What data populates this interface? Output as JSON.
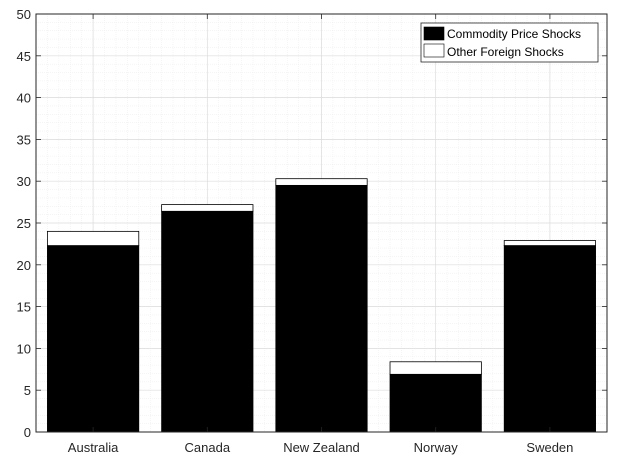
{
  "chart_data": {
    "type": "bar",
    "stacked": true,
    "categories": [
      "Australia",
      "Canada",
      "New Zealand",
      "Norway",
      "Sweden"
    ],
    "series": [
      {
        "name": "Commodity Price Shocks",
        "values": [
          22.3,
          26.4,
          29.5,
          6.9,
          22.3
        ],
        "color": "#000000"
      },
      {
        "name": "Other Foreign Shocks",
        "values": [
          1.7,
          0.8,
          0.8,
          1.5,
          0.6
        ],
        "color": "#ffffff"
      }
    ],
    "ylim": [
      0,
      50
    ],
    "yticks": [
      "0",
      "5",
      "10",
      "15",
      "20",
      "25",
      "30",
      "35",
      "40",
      "45",
      "50"
    ],
    "grid": true,
    "minor_grid": true,
    "legend_position": "top-right"
  }
}
